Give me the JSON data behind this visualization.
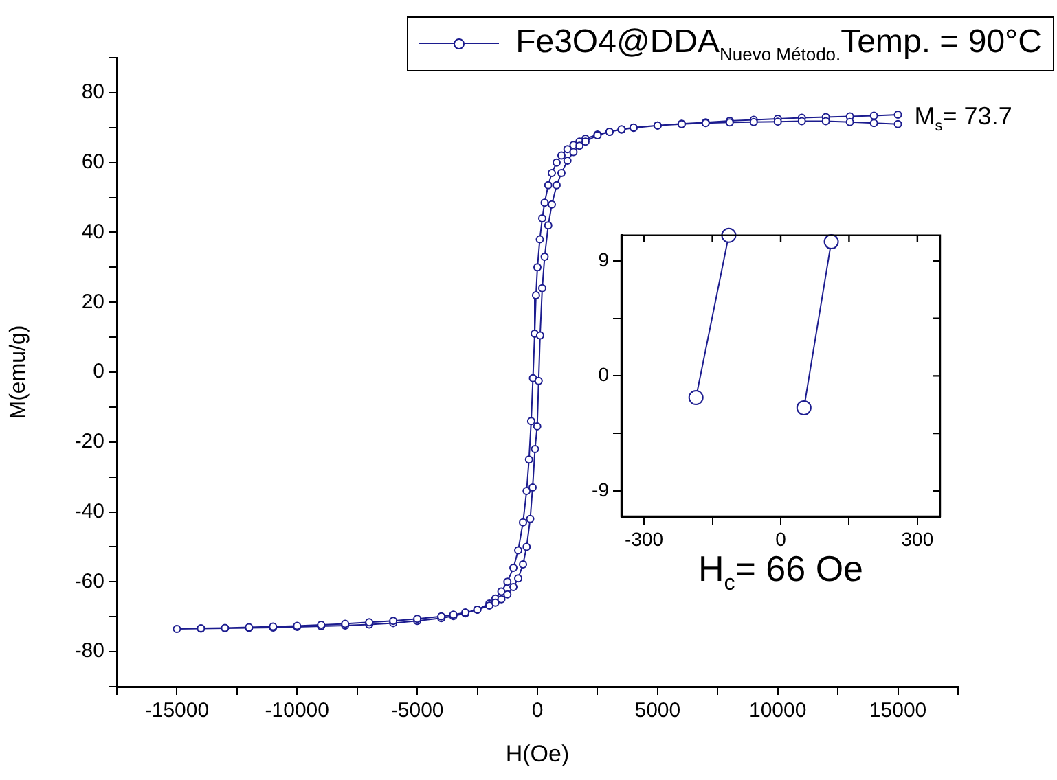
{
  "chart_data": [
    {
      "type": "line",
      "xlabel": "H(Oe)",
      "ylabel": "M(emu/g)",
      "marker": "circle",
      "line_style": "solid",
      "grid": false,
      "legend": "top right",
      "xlim": [
        -17500,
        17500
      ],
      "ylim": [
        -90,
        90
      ],
      "xticks": [
        {
          "value": -17500,
          "label": null
        },
        -15000,
        {
          "value": -12500,
          "label": null
        },
        -10000,
        {
          "value": -7500,
          "label": null
        },
        -5000,
        {
          "value": -2500,
          "label": null
        },
        0,
        {
          "value": 2500,
          "label": null
        },
        5000,
        {
          "value": 7500,
          "label": null
        },
        10000,
        {
          "value": 12500,
          "label": null
        },
        15000,
        {
          "value": 17500,
          "label": null
        }
      ],
      "yticks": [
        {
          "value": -90,
          "label": null
        },
        -80,
        {
          "value": -70,
          "label": null
        },
        -60,
        {
          "value": -50,
          "label": null
        },
        -40,
        {
          "value": -30,
          "label": null
        },
        -20,
        {
          "value": -10,
          "label": null
        },
        0,
        {
          "value": 10,
          "label": null
        },
        20,
        {
          "value": 30,
          "label": null
        },
        40,
        {
          "value": 50,
          "label": null
        },
        60,
        {
          "value": 70,
          "label": null
        },
        80,
        {
          "value": 90,
          "label": null
        }
      ],
      "annotations": [
        {
          "text": "M$_{s}$= 73.7",
          "x": 15000,
          "y": 73.7
        }
      ],
      "series": [
        {
          "name": "Fe3O4@DDA$_{Nuevo Método.}$Temp. = 90°C",
          "color": "#1c1c8f",
          "x": [
            15000,
            14000,
            13000,
            12000,
            11000,
            10000,
            9000,
            8000,
            7000,
            6000,
            5000,
            4000,
            3500,
            3000,
            2500,
            2000,
            1750,
            1500,
            1250,
            1000,
            800,
            600,
            450,
            300,
            200,
            100,
            0,
            -60,
            -114,
            -186,
            -260,
            -350,
            -450,
            -600,
            -800,
            -1000,
            -1250,
            -1500,
            -1750,
            -2000,
            -2500,
            -3000,
            -3500,
            -4000,
            -5000,
            -6000,
            -7000,
            -8000,
            -9000,
            -10000,
            -11000,
            -12000,
            -13000,
            -14000,
            -15000,
            -14000,
            -13000,
            -12000,
            -11000,
            -10000,
            -9000,
            -8000,
            -7000,
            -6000,
            -5000,
            -4000,
            -3500,
            -3000,
            -2500,
            -2000,
            -1750,
            -1500,
            -1250,
            -1000,
            -800,
            -600,
            -450,
            -300,
            -200,
            -100,
            -9,
            51,
            111,
            200,
            300,
            450,
            600,
            800,
            1000,
            1250,
            1500,
            1750,
            2000,
            2500,
            3000,
            3500,
            4000,
            5000,
            6000,
            7000,
            8000,
            9000,
            10000,
            11000,
            12000,
            13000,
            14000,
            15000
          ],
          "values": [
            73.7,
            73.4,
            73.2,
            73.0,
            72.8,
            72.5,
            72.2,
            71.9,
            71.5,
            71.1,
            70.6,
            69.9,
            69.4,
            68.8,
            68.0,
            66.8,
            66.0,
            65.0,
            63.8,
            62.0,
            60.0,
            57.0,
            53.5,
            48.5,
            44,
            38,
            30,
            22,
            11.0,
            -1.7,
            -14,
            -25,
            -34,
            -43,
            -51,
            -56,
            -60,
            -62.8,
            -64.8,
            -66.2,
            -68.0,
            -69.0,
            -69.8,
            -70.4,
            -71.2,
            -71.8,
            -72.2,
            -72.5,
            -72.7,
            -72.9,
            -73.1,
            -73.2,
            -73.3,
            -73.4,
            -73.5,
            -73.3,
            -73.2,
            -73.0,
            -72.8,
            -72.6,
            -72.3,
            -72.0,
            -71.6,
            -71.2,
            -70.6,
            -69.9,
            -69.4,
            -68.8,
            -68.0,
            -66.8,
            -66.0,
            -65.0,
            -63.6,
            -61.5,
            -59,
            -55,
            -50,
            -42,
            -33,
            -22,
            -15.5,
            -2.5,
            10.5,
            24,
            33,
            42,
            48,
            53.5,
            57,
            60.5,
            63,
            64.8,
            66.0,
            67.8,
            68.8,
            69.5,
            70.0,
            70.6,
            71.0,
            71.3,
            71.5,
            71.6,
            71.7,
            71.8,
            71.8,
            71.6,
            71.3,
            71.0
          ]
        }
      ]
    },
    {
      "type": "line",
      "xlabel": "H$_{c}$= 66 Oe",
      "marker": "circle",
      "line_style": "solid",
      "grid": false,
      "xlim": [
        -350,
        350
      ],
      "ylim": [
        -11,
        11
      ],
      "xticks": [
        -300,
        {
          "value": -150,
          "label": null
        },
        0,
        {
          "value": 150,
          "label": null
        },
        300
      ],
      "yticks": [
        -9,
        {
          "value": -4.5,
          "label": null
        },
        0,
        {
          "value": 4.5,
          "label": null
        },
        9
      ],
      "series": [
        {
          "color": "#1c1c8f",
          "x": [
            -114,
            -186
          ],
          "values": [
            11.0,
            -1.7
          ]
        },
        {
          "color": "#1c1c8f",
          "x": [
            51,
            111
          ],
          "values": [
            -2.5,
            10.5
          ]
        }
      ]
    }
  ]
}
